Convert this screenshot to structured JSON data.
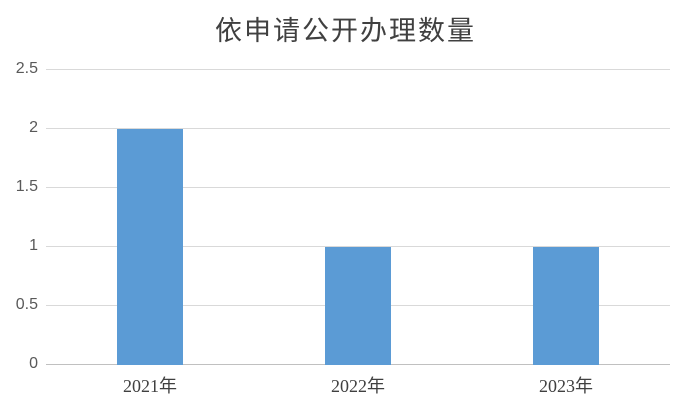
{
  "chart_data": {
    "type": "bar",
    "title": "依申请公开办理数量",
    "categories": [
      "2021年",
      "2022年",
      "2023年"
    ],
    "values": [
      2,
      1,
      1
    ],
    "xlabel": "",
    "ylabel": "",
    "ylim": [
      0,
      2.5
    ],
    "yticks": [
      0,
      0.5,
      1,
      1.5,
      2,
      2.5
    ],
    "ytick_labels": [
      "0",
      "0.5",
      "1",
      "1.5",
      "2",
      "2.5"
    ],
    "grid": "horizontal",
    "legend_position": "none",
    "colors": {
      "bar": "#5B9BD5",
      "gridline": "#D9D9D9",
      "axis_line": "#C0C0C0",
      "ytick_label": "#595959",
      "xtick_label": "#404040",
      "title": "#404040",
      "background": "#FFFFFF"
    }
  }
}
